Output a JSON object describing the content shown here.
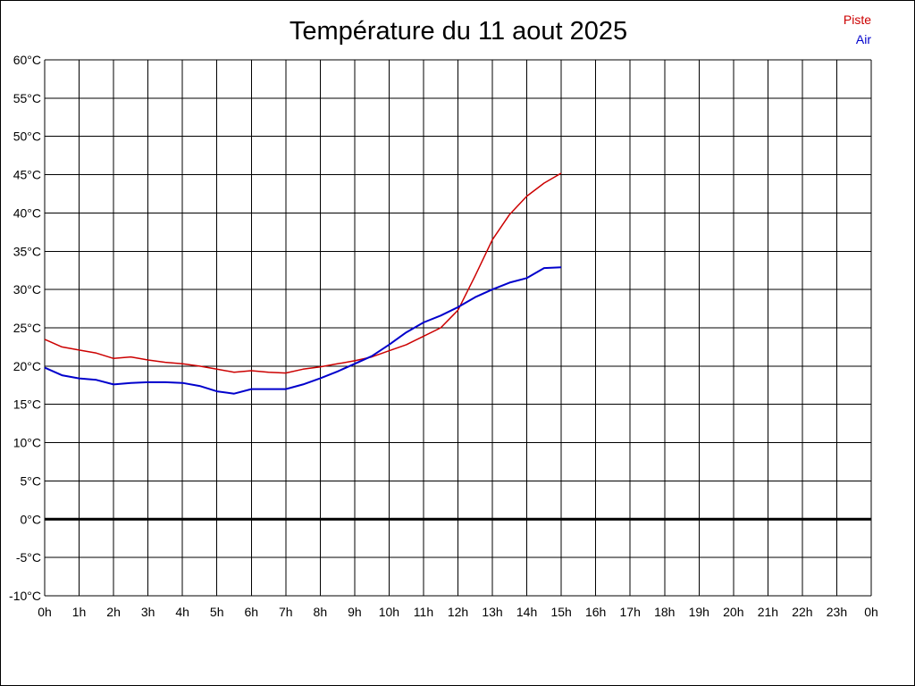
{
  "chart_data": {
    "type": "line",
    "title": "Température du 11 aout 2025",
    "xlabel": "",
    "ylabel": "",
    "x_ticks": [
      "0h",
      "1h",
      "2h",
      "3h",
      "4h",
      "5h",
      "6h",
      "7h",
      "8h",
      "9h",
      "10h",
      "11h",
      "12h",
      "13h",
      "14h",
      "15h",
      "16h",
      "17h",
      "18h",
      "19h",
      "20h",
      "21h",
      "22h",
      "23h",
      "0h"
    ],
    "y_ticks": [
      "60°C",
      "55°C",
      "50°C",
      "45°C",
      "40°C",
      "35°C",
      "30°C",
      "25°C",
      "20°C",
      "15°C",
      "10°C",
      "5°C",
      "0°C",
      "-5°C",
      "-10°C"
    ],
    "xlim": [
      0,
      24
    ],
    "ylim": [
      -10,
      60
    ],
    "grid": true,
    "legend_position": "top-right",
    "series": [
      {
        "name": "Piste",
        "color": "#cc0000",
        "x": [
          0,
          0.5,
          1,
          1.5,
          2,
          2.5,
          3,
          3.5,
          4,
          4.5,
          5,
          5.5,
          6,
          6.5,
          7,
          7.5,
          8,
          8.5,
          9,
          9.5,
          10,
          10.5,
          11,
          11.5,
          12,
          12.5,
          13,
          13.5,
          14,
          14.5,
          15
        ],
        "values": [
          23.5,
          22.5,
          22.1,
          21.7,
          21.0,
          21.2,
          20.8,
          20.5,
          20.3,
          20.0,
          19.6,
          19.2,
          19.4,
          19.2,
          19.1,
          19.6,
          19.9,
          20.3,
          20.7,
          21.2,
          22.0,
          22.8,
          23.9,
          25.0,
          27.3,
          31.8,
          36.5,
          39.8,
          42.2,
          43.9,
          45.2
        ]
      },
      {
        "name": "Air",
        "color": "#0000cc",
        "x": [
          0,
          0.5,
          1,
          1.5,
          2,
          2.5,
          3,
          3.5,
          4,
          4.5,
          5,
          5.5,
          6,
          6.5,
          7,
          7.5,
          8,
          8.5,
          9,
          9.5,
          10,
          10.5,
          11,
          11.5,
          12,
          12.5,
          13,
          13.5,
          14,
          14.5,
          15
        ],
        "values": [
          19.8,
          18.8,
          18.4,
          18.2,
          17.6,
          17.8,
          17.9,
          17.9,
          17.8,
          17.4,
          16.7,
          16.4,
          17.0,
          17.0,
          17.0,
          17.6,
          18.4,
          19.3,
          20.3,
          21.3,
          22.8,
          24.4,
          25.7,
          26.6,
          27.7,
          29.0,
          30.0,
          30.9,
          31.5,
          32.8,
          32.9
        ]
      }
    ],
    "baseline_y": 0
  }
}
